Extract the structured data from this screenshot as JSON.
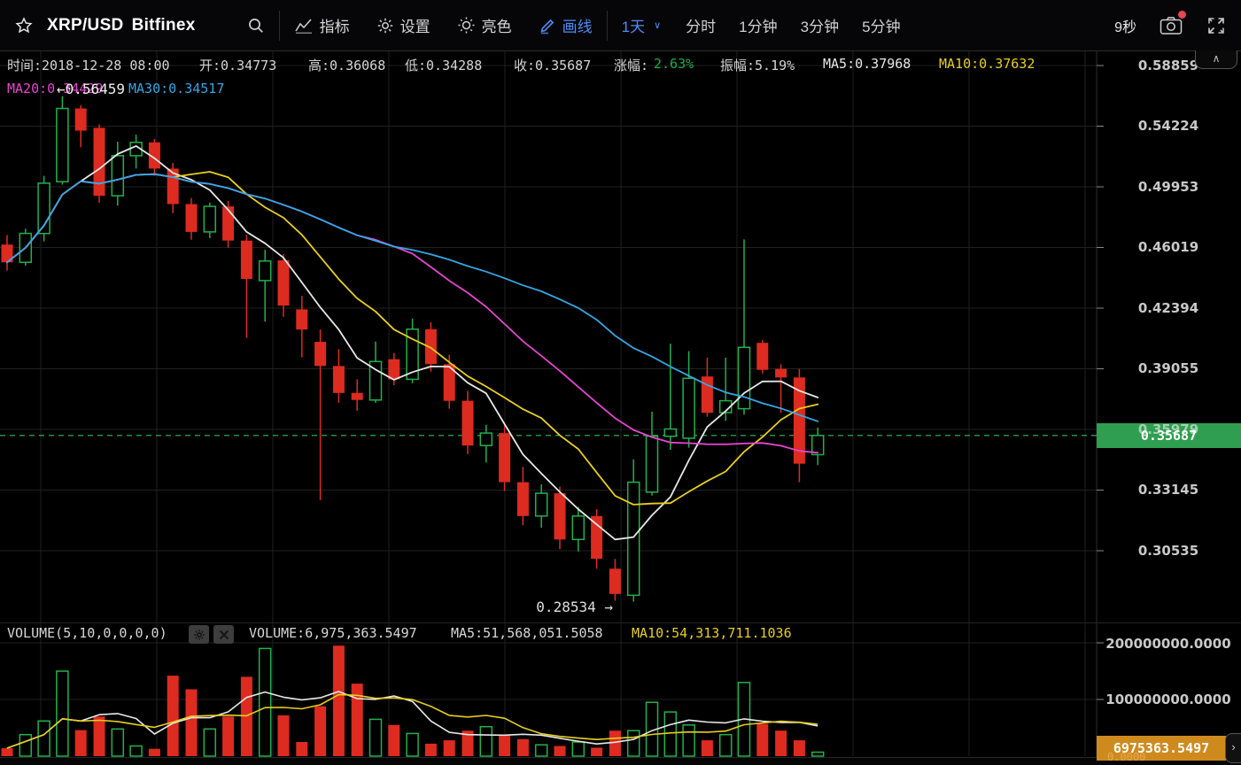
{
  "toolbar": {
    "symbol": "XRP/USD",
    "exchange": "Bitfinex",
    "menus": [
      {
        "label": "指标"
      },
      {
        "label": "设置"
      },
      {
        "label": "亮色"
      },
      {
        "label": "画线"
      }
    ],
    "period_selected": "1天",
    "periods": [
      "分时",
      "1分钟",
      "3分钟",
      "5分钟"
    ],
    "countdown": "9秒"
  },
  "info_bar": {
    "time": "时间:2018-12-28 08:00",
    "open": "开:0.34773",
    "high": "高:0.36068",
    "low": "低:0.34288",
    "close": "收:0.35687",
    "gain_label": "涨幅:",
    "gain_value": "2.63%",
    "amplitude": "振幅:5.19%",
    "ma5": "MA5:0.37968",
    "ma10": "MA10:0.37632",
    "ma20": "MA20:0.34429",
    "ma30": "MA30:0.34517"
  },
  "markers": {
    "high": "←0.56459",
    "low": "0.28534 →"
  },
  "price_axis": {
    "labels": [
      "0.58859",
      "0.54224",
      "0.49953",
      "0.46019",
      "0.42394",
      "0.39055",
      "0.35979",
      "0.33145",
      "0.30535"
    ],
    "current": "0.35687"
  },
  "volume_axis": {
    "labels": [
      "200000000.0000",
      "100000000.0000"
    ],
    "current": "6975363.5497",
    "ghost_zero": "0.0000"
  },
  "volume_header": {
    "title": "VOLUME(5,10,0,0,0,0)",
    "volume": "VOLUME:6,975,363.5497",
    "ma5": "MA5:51,568,051.5058",
    "ma10": "MA10:54,313,711.1036"
  },
  "colors": {
    "up": "#22b14c",
    "down": "#dd2b20",
    "ma5": "#e8e8e8",
    "ma10": "#e8cf1e",
    "ma20": "#e645d0",
    "ma30": "#36a6e5",
    "accent_blue": "#4e8cf8",
    "gain_green": "#18b04a",
    "price_line": "#2fbf63",
    "badge_green": "#2f9e50",
    "badge_orange": "#cf8a1e",
    "grid": "#212121"
  },
  "chart_data": {
    "type": "candlestick_with_volume",
    "title": "XRP/USD Bitfinex 1天",
    "log_scale": true,
    "price_axis_max": 0.58859,
    "price_axis_ratio_per_step": 1.0855,
    "current_price": 0.35687,
    "session_high": 0.56459,
    "session_low": 0.28534,
    "ma_periods": [
      5,
      10,
      20,
      30
    ],
    "volume_ma_periods": [
      5,
      10
    ],
    "candles_ohlc": [
      [
        0.462,
        0.468,
        0.446,
        0.451
      ],
      [
        0.451,
        0.472,
        0.449,
        0.469
      ],
      [
        0.469,
        0.507,
        0.464,
        0.502
      ],
      [
        0.503,
        0.5646,
        0.501,
        0.5554
      ],
      [
        0.5554,
        0.558,
        0.527,
        0.539
      ],
      [
        0.541,
        0.5435,
        0.489,
        0.4935
      ],
      [
        0.4935,
        0.531,
        0.487,
        0.521
      ],
      [
        0.521,
        0.536,
        0.512,
        0.5305
      ],
      [
        0.5305,
        0.533,
        0.507,
        0.512
      ],
      [
        0.512,
        0.516,
        0.482,
        0.488
      ],
      [
        0.488,
        0.492,
        0.465,
        0.47
      ],
      [
        0.47,
        0.489,
        0.466,
        0.4865
      ],
      [
        0.4865,
        0.49,
        0.46,
        0.4645
      ],
      [
        0.4645,
        0.468,
        0.4072,
        0.441
      ],
      [
        0.44,
        0.4587,
        0.4163,
        0.4518
      ],
      [
        0.4522,
        0.456,
        0.419,
        0.4254
      ],
      [
        0.4232,
        0.431,
        0.3966,
        0.4118
      ],
      [
        0.405,
        0.4118,
        0.327,
        0.392
      ],
      [
        0.392,
        0.401,
        0.373,
        0.378
      ],
      [
        0.378,
        0.385,
        0.369,
        0.3744
      ],
      [
        0.3744,
        0.4052,
        0.373,
        0.3944
      ],
      [
        0.3956,
        0.399,
        0.382,
        0.385
      ],
      [
        0.385,
        0.418,
        0.383,
        0.412
      ],
      [
        0.412,
        0.416,
        0.389,
        0.393
      ],
      [
        0.393,
        0.398,
        0.37,
        0.374
      ],
      [
        0.374,
        0.379,
        0.348,
        0.352
      ],
      [
        0.352,
        0.362,
        0.344,
        0.358
      ],
      [
        0.358,
        0.362,
        0.331,
        0.335
      ],
      [
        0.335,
        0.342,
        0.316,
        0.32
      ],
      [
        0.32,
        0.334,
        0.315,
        0.33
      ],
      [
        0.33,
        0.333,
        0.306,
        0.31
      ],
      [
        0.31,
        0.324,
        0.305,
        0.32
      ],
      [
        0.32,
        0.323,
        0.298,
        0.302
      ],
      [
        0.298,
        0.302,
        0.28534,
        0.288
      ],
      [
        0.2875,
        0.3455,
        0.285,
        0.335
      ],
      [
        0.3305,
        0.3685,
        0.329,
        0.3565
      ],
      [
        0.3565,
        0.404,
        0.35,
        0.36
      ],
      [
        0.3555,
        0.4,
        0.351,
        0.3855
      ],
      [
        0.3865,
        0.3965,
        0.366,
        0.368
      ],
      [
        0.368,
        0.3965,
        0.364,
        0.374
      ],
      [
        0.37,
        0.4652,
        0.367,
        0.402
      ],
      [
        0.4045,
        0.406,
        0.388,
        0.39
      ],
      [
        0.3905,
        0.393,
        0.368,
        0.386
      ],
      [
        0.386,
        0.3905,
        0.335,
        0.3435
      ],
      [
        0.34773,
        0.36068,
        0.34288,
        0.35687
      ]
    ],
    "volumes": [
      14000000,
      38000000,
      62000000,
      150000000,
      46000000,
      70000000,
      48000000,
      18000000,
      13000000,
      142000000,
      118000000,
      48000000,
      70000000,
      140000000,
      190000000,
      72000000,
      25000000,
      88000000,
      195000000,
      128000000,
      65000000,
      55000000,
      40000000,
      22000000,
      28000000,
      45000000,
      52000000,
      38000000,
      30000000,
      20000000,
      18000000,
      25000000,
      15000000,
      45000000,
      45000000,
      95000000,
      78000000,
      55000000,
      28000000,
      38000000,
      130000000,
      57000000,
      45000000,
      28000000,
      6975363.5497
    ]
  }
}
